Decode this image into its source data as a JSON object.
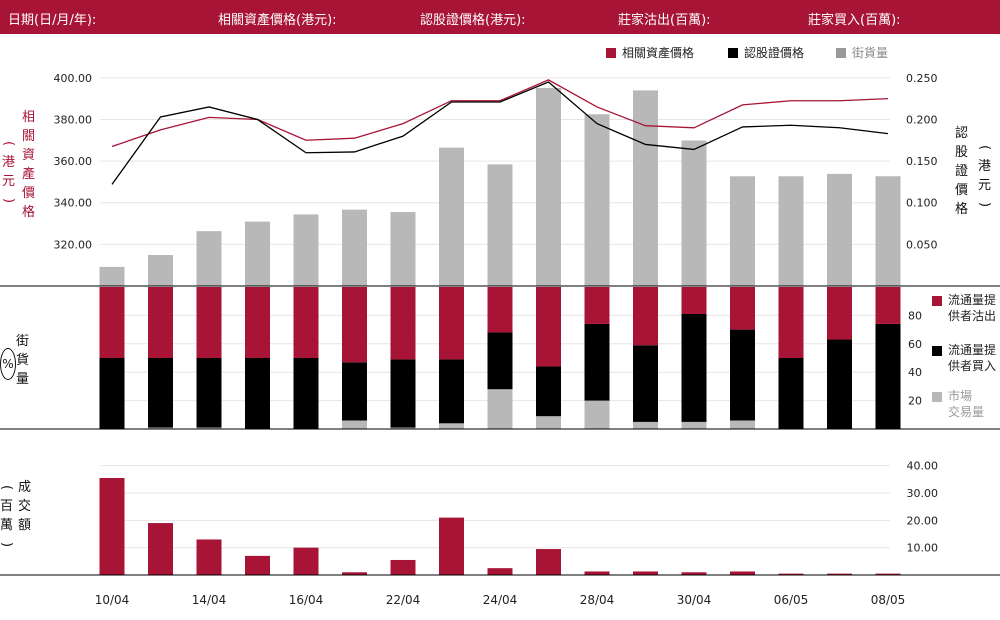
{
  "header": {
    "date": "日期(日/月/年):",
    "underlying_price": "相關資產價格(港元):",
    "warrant_price": "認股證價格(港元):",
    "mm_sold": "莊家沽出(百萬):",
    "mm_bought": "莊家買入(百萬):"
  },
  "legend": {
    "underlying": "相關資產價格",
    "warrant": "認股證價格",
    "street": "街貨量"
  },
  "axis_titles": {
    "left_top_chars": [
      "相",
      "關",
      "資",
      "產",
      "價",
      "格"
    ],
    "left_top_unit_chars": [
      "港",
      "元"
    ],
    "right_top_chars": [
      "認",
      "股",
      "證",
      "價",
      "格"
    ],
    "right_top_unit_chars": [
      "港",
      "元"
    ],
    "left_mid_chars": [
      "街",
      "貨",
      "量"
    ],
    "left_mid_unit": "%",
    "left_bottom_chars": [
      "成",
      "交",
      "額"
    ],
    "left_bottom_unit_chars": [
      "百",
      "萬"
    ]
  },
  "side_legend": {
    "sold": [
      "流通量提",
      "供者沽出"
    ],
    "bought": [
      "流通量提",
      "供者買入"
    ],
    "market": [
      "市場",
      "交易量"
    ]
  },
  "colors": {
    "brand": "#a81436",
    "black": "#000000",
    "gray": "#b8b8b8",
    "grid": "#e6e6e6"
  },
  "chart_data": [
    {
      "type": "line",
      "title": "",
      "x": [
        "10/04",
        "",
        "14/04",
        "",
        "16/04",
        "",
        "22/04",
        "",
        "24/04",
        "",
        "28/04",
        "",
        "30/04",
        "",
        "06/05",
        "",
        "08/05"
      ],
      "series": [
        {
          "name": "相關資產價格",
          "axis": "left",
          "values": [
            367,
            375,
            381,
            380,
            370,
            371,
            378,
            389,
            389,
            399,
            386,
            377,
            376,
            387,
            389,
            389,
            390
          ]
        }
      ],
      "ylim_left": [
        300,
        410
      ],
      "yticks_left": [
        "320.00",
        "340.00",
        "360.00",
        "380.00",
        "400.00"
      ]
    },
    {
      "type": "line",
      "x": [
        "10/04",
        "",
        "14/04",
        "",
        "16/04",
        "",
        "22/04",
        "",
        "24/04",
        "",
        "28/04",
        "",
        "30/04",
        "",
        "06/05",
        "",
        "08/05"
      ],
      "series": [
        {
          "name": "認股證價格",
          "axis": "right",
          "values": [
            0.122,
            0.203,
            0.215,
            0.2,
            0.16,
            0.161,
            0.18,
            0.221,
            0.221,
            0.245,
            0.195,
            0.17,
            0.164,
            0.191,
            0.193,
            0.19,
            0.183
          ]
        }
      ],
      "ylim_right": [
        0.0,
        0.275
      ],
      "yticks_right": [
        "0.050",
        "0.100",
        "0.150",
        "0.200",
        "0.250"
      ]
    },
    {
      "type": "bar",
      "series": [
        {
          "name": "街貨量",
          "values": [
            4,
            6.5,
            11.5,
            13.5,
            15,
            16,
            15.5,
            29,
            25.5,
            41.5,
            36,
            41,
            30.5,
            23,
            23,
            23.5,
            23
          ]
        }
      ],
      "ylim": [
        0,
        48
      ]
    },
    {
      "type": "bar",
      "ylim": [
        0,
        100
      ],
      "yticks": [
        "20",
        "40",
        "60",
        "80"
      ],
      "series": [
        {
          "name": "流通量提供者沽出",
          "values": [
            50,
            50,
            50,
            50,
            50,
            53,
            51,
            51,
            32,
            56,
            26,
            41,
            19,
            30,
            50,
            37,
            26
          ]
        },
        {
          "name": "流通量提供者買入",
          "values": [
            50,
            49,
            49,
            50,
            50,
            41,
            48,
            45,
            40,
            35,
            54,
            54,
            76,
            64,
            50,
            63,
            74
          ]
        },
        {
          "name": "市場交易量",
          "values": [
            0,
            1,
            1,
            0,
            0,
            6,
            1,
            4,
            28,
            9,
            20,
            5,
            5,
            6,
            0,
            0,
            0
          ]
        }
      ]
    },
    {
      "type": "bar",
      "ylim": [
        0,
        45
      ],
      "yticks": [
        "10.00",
        "20.00",
        "30.00",
        "40.00"
      ],
      "x": [
        "10/04",
        "",
        "14/04",
        "",
        "16/04",
        "",
        "22/04",
        "",
        "24/04",
        "",
        "28/04",
        "",
        "30/04",
        "",
        "06/05",
        "",
        "08/05"
      ],
      "series": [
        {
          "name": "成交額",
          "values": [
            35.5,
            19,
            13,
            7,
            10,
            1,
            5.5,
            21,
            2.5,
            9.5,
            1.3,
            1.3,
            1,
            1.3,
            0.5,
            0.5,
            0.5
          ]
        }
      ]
    }
  ]
}
